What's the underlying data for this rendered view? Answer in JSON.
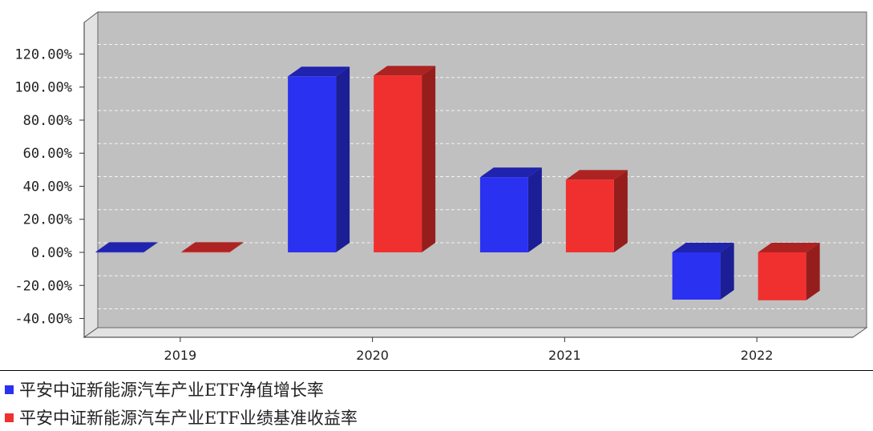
{
  "chart_data": {
    "type": "bar",
    "categories": [
      "2019",
      "2020",
      "2021",
      "2022"
    ],
    "series": [
      {
        "name": "平安中证新能源汽车产业ETF净值增长率",
        "color": "#2b31f0",
        "values": [
          0.3,
          106.5,
          45.5,
          -28.6
        ]
      },
      {
        "name": "平安中证新能源汽车产业ETF业绩基准收益率",
        "color": "#f0302f",
        "values": [
          0.3,
          107.0,
          44.0,
          -29.0
        ]
      }
    ],
    "ylim": [
      -40,
      120
    ],
    "yticks": [
      "120.00%",
      "100.00%",
      "80.00%",
      "60.00%",
      "40.00%",
      "20.00%",
      "0.00%",
      "-20.00%",
      "-40.00%"
    ],
    "ytick_values": [
      120,
      100,
      80,
      60,
      40,
      20,
      0,
      -20,
      -40
    ],
    "grid": true,
    "legend_position": "bottom",
    "title": "",
    "xlabel": "",
    "ylabel": ""
  }
}
